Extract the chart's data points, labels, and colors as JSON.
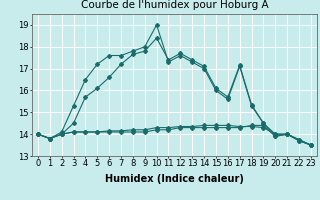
{
  "title": "Courbe de l'humidex pour Hoburg A",
  "xlabel": "Humidex (Indice chaleur)",
  "ylabel": "",
  "background_color": "#c8ecec",
  "grid_color": "#ffffff",
  "line_color": "#1a6b6b",
  "x_values": [
    0,
    1,
    2,
    3,
    4,
    5,
    6,
    7,
    8,
    9,
    10,
    11,
    12,
    13,
    14,
    15,
    16,
    17,
    18,
    19,
    20,
    21,
    22,
    23
  ],
  "series1": [
    14.0,
    13.8,
    14.0,
    14.1,
    14.1,
    14.1,
    14.1,
    14.1,
    14.1,
    14.1,
    14.2,
    14.2,
    14.3,
    14.3,
    14.3,
    14.3,
    14.3,
    14.3,
    14.4,
    14.4,
    13.9,
    14.0,
    13.7,
    13.5
  ],
  "series2": [
    14.0,
    13.8,
    14.0,
    14.1,
    14.1,
    14.1,
    14.15,
    14.15,
    14.2,
    14.2,
    14.3,
    14.3,
    14.35,
    14.35,
    14.4,
    14.4,
    14.4,
    14.35,
    14.35,
    14.3,
    14.0,
    14.0,
    13.75,
    13.5
  ],
  "series3": [
    14.0,
    13.8,
    14.1,
    15.3,
    16.5,
    17.2,
    17.6,
    17.6,
    17.8,
    18.0,
    19.0,
    17.3,
    17.6,
    17.3,
    17.0,
    16.0,
    15.6,
    17.1,
    15.3,
    14.5,
    13.9,
    14.0,
    13.7,
    13.5
  ],
  "series4": [
    14.0,
    13.8,
    14.0,
    14.5,
    15.7,
    16.1,
    16.6,
    17.2,
    17.65,
    17.8,
    18.4,
    17.4,
    17.7,
    17.4,
    17.1,
    16.1,
    15.7,
    17.15,
    15.35,
    14.5,
    14.0,
    14.0,
    13.75,
    13.5
  ],
  "ylim": [
    13.0,
    19.5
  ],
  "yticks": [
    13,
    14,
    15,
    16,
    17,
    18,
    19
  ],
  "xlim": [
    -0.5,
    23.5
  ],
  "title_fontsize": 7.5,
  "axis_fontsize": 7,
  "tick_fontsize": 6
}
